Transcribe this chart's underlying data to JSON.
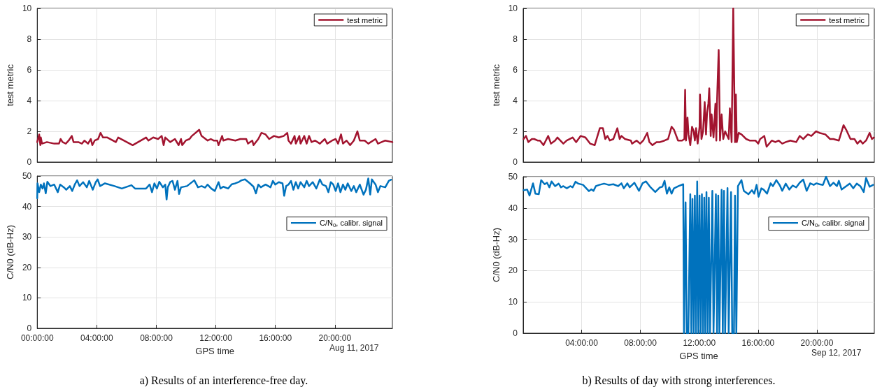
{
  "chart_data": [
    {
      "type": "line",
      "ylabel": "test metric",
      "xlim": [
        0,
        23.86
      ],
      "ylim": [
        0,
        10
      ],
      "yticks": [
        0,
        2,
        4,
        6,
        8,
        10
      ],
      "xticks": [
        {
          "value": 0,
          "label": null
        },
        {
          "value": 4,
          "label": null
        },
        {
          "value": 8,
          "label": null
        },
        {
          "value": 12,
          "label": null
        },
        {
          "value": 16,
          "label": null
        },
        {
          "value": 20,
          "label": null
        }
      ],
      "tick_labels": "y",
      "grid": true,
      "legend": "top right",
      "marker": "none",
      "line_style": "solid",
      "series": [
        {
          "name": "test metric",
          "color": "#a2142f",
          "x": [
            0,
            0.13,
            0.21,
            0.24,
            0.32,
            0.65,
            1.14,
            1.46,
            1.57,
            1.7,
            1.92,
            2.11,
            2.32,
            2.44,
            2.76,
            3.0,
            3.17,
            3.41,
            3.6,
            3.7,
            3.86,
            4.09,
            4.25,
            4.42,
            4.71,
            5.28,
            5.44,
            6.41,
            7.31,
            7.47,
            7.79,
            8.12,
            8.36,
            8.49,
            8.6,
            8.93,
            9.25,
            9.5,
            9.66,
            9.74,
            9.98,
            10.23,
            10.39,
            10.88,
            11.04,
            11.45,
            11.66,
            11.85,
            12.09,
            12.18,
            12.42,
            12.5,
            12.82,
            13.31,
            13.64,
            14.04,
            14.16,
            14.45,
            14.53,
            14.85,
            15.06,
            15.34,
            15.58,
            15.91,
            16.23,
            16.56,
            16.8,
            16.88,
            17.05,
            17.29,
            17.37,
            17.61,
            17.69,
            17.94,
            18.1,
            18.26,
            18.43,
            18.67,
            18.99,
            19.32,
            19.48,
            19.81,
            20.05,
            20.21,
            20.41,
            20.54,
            20.78,
            21.02,
            21.27,
            21.51,
            21.67,
            22.0,
            22.24,
            22.73,
            22.89,
            23.38,
            23.86
          ],
          "values": [
            1.3,
            1.8,
            1.1,
            1.6,
            1.2,
            1.3,
            1.2,
            1.2,
            1.5,
            1.3,
            1.2,
            1.4,
            1.7,
            1.3,
            1.3,
            1.2,
            1.4,
            1.2,
            1.5,
            1.1,
            1.4,
            1.5,
            1.9,
            1.6,
            1.6,
            1.3,
            1.6,
            1.1,
            1.6,
            1.4,
            1.6,
            1.5,
            1.7,
            1.1,
            1.6,
            1.3,
            1.5,
            1.1,
            1.5,
            1.1,
            1.4,
            1.5,
            1.7,
            2.1,
            1.7,
            1.4,
            1.5,
            1.4,
            1.4,
            1.1,
            1.7,
            1.4,
            1.5,
            1.4,
            1.5,
            1.5,
            1.2,
            1.4,
            1.1,
            1.5,
            1.9,
            1.8,
            1.5,
            1.7,
            1.6,
            1.7,
            1.9,
            1.4,
            1.2,
            1.7,
            1.2,
            1.7,
            1.2,
            1.7,
            1.2,
            1.7,
            1.3,
            1.4,
            1.2,
            1.5,
            1.2,
            1.4,
            1.5,
            1.2,
            1.8,
            1.2,
            1.4,
            1.1,
            1.4,
            2.0,
            1.4,
            1.4,
            1.2,
            1.5,
            1.2,
            1.4,
            1.3
          ]
        }
      ]
    },
    {
      "type": "line",
      "ylabel": "C/N0 (dB-Hz)",
      "xlabel": "GPS time",
      "xlim": [
        0,
        23.86
      ],
      "ylim": [
        0,
        50
      ],
      "yticks": [
        0,
        10,
        20,
        30,
        40,
        50
      ],
      "xticks": [
        {
          "value": 0,
          "label": "00:00:00"
        },
        {
          "value": 4,
          "label": "04:00:00"
        },
        {
          "value": 8,
          "label": "08:00:00"
        },
        {
          "value": 12,
          "label": "12:00:00"
        },
        {
          "value": 16,
          "label": "16:00:00"
        },
        {
          "value": 20,
          "label": "20:00:00"
        }
      ],
      "grid": true,
      "legend": "right",
      "marker": "none",
      "line_style": "solid",
      "annotations": [
        "Aug 11, 2017",
        "a) Results of an interference-free day."
      ],
      "series": [
        {
          "name": "C/N$_{0}$, calibr. signal",
          "color": "#0072bd",
          "x": [
            0,
            0.02,
            0.13,
            0.24,
            0.36,
            0.45,
            0.57,
            0.68,
            0.89,
            1.14,
            1.38,
            1.54,
            1.79,
            1.95,
            2.19,
            2.35,
            2.52,
            2.68,
            2.84,
            3.08,
            3.33,
            3.49,
            3.73,
            3.93,
            4.06,
            4.22,
            4.55,
            5.19,
            5.68,
            6.33,
            6.57,
            7.31,
            7.55,
            7.71,
            7.87,
            8.04,
            8.2,
            8.44,
            8.6,
            8.69,
            8.77,
            8.93,
            9.09,
            9.25,
            9.42,
            9.53,
            9.66,
            10.06,
            10.55,
            10.8,
            11.04,
            11.28,
            11.44,
            11.69,
            11.93,
            12.18,
            12.31,
            12.5,
            12.82,
            13.07,
            13.31,
            13.56,
            13.72,
            13.96,
            14.29,
            14.53,
            14.69,
            14.85,
            15.02,
            15.34,
            15.67,
            15.83,
            15.99,
            16.23,
            16.48,
            16.59,
            16.72,
            16.88,
            17.05,
            17.21,
            17.37,
            17.53,
            17.69,
            17.94,
            18.1,
            18.26,
            18.51,
            18.75,
            18.99,
            19.16,
            19.4,
            19.56,
            19.72,
            19.89,
            20.05,
            20.21,
            20.37,
            20.54,
            20.7,
            20.86,
            21.1,
            21.27,
            21.43,
            21.67,
            21.92,
            22.08,
            22.24,
            22.37,
            22.48,
            22.73,
            22.89,
            23.05,
            23.38,
            23.62,
            23.78
          ],
          "values": [
            42.7,
            47.6,
            44.7,
            47.2,
            45.9,
            47.6,
            44.3,
            48.1,
            46.7,
            47.2,
            44.7,
            47.2,
            46.3,
            45.5,
            46.7,
            45.1,
            47.2,
            48.6,
            46.7,
            48.0,
            46.3,
            48.4,
            45.5,
            48.0,
            48.9,
            46.7,
            47.6,
            46.7,
            45.9,
            47.0,
            45.9,
            45.9,
            47.2,
            44.7,
            47.6,
            45.9,
            48.1,
            46.3,
            47.2,
            42.3,
            46.3,
            48.0,
            48.4,
            45.5,
            48.4,
            44.1,
            46.3,
            46.7,
            48.6,
            46.3,
            46.7,
            46.2,
            47.2,
            45.9,
            45.1,
            48.0,
            45.9,
            46.5,
            45.9,
            47.3,
            47.6,
            48.1,
            48.6,
            48.9,
            47.6,
            46.5,
            44.3,
            47.2,
            46.3,
            47.2,
            46.3,
            48.4,
            47.2,
            48.0,
            47.6,
            43.5,
            46.7,
            47.2,
            48.4,
            45.5,
            48.0,
            45.9,
            48.0,
            46.3,
            48.4,
            46.7,
            48.0,
            45.9,
            48.9,
            47.2,
            46.7,
            44.7,
            48.0,
            47.2,
            45.1,
            47.6,
            44.7,
            47.2,
            45.5,
            47.6,
            45.1,
            46.7,
            44.7,
            47.2,
            43.9,
            45.5,
            49.2,
            43.9,
            48.9,
            47.2,
            44.7,
            46.7,
            46.3,
            48.4,
            48.8
          ]
        }
      ]
    },
    {
      "type": "line",
      "ylabel": "test metric",
      "xlim": [
        0.03,
        23.9
      ],
      "ylim": [
        0,
        10
      ],
      "yticks": [
        0,
        2,
        4,
        6,
        8,
        10
      ],
      "xticks": [
        {
          "value": 4,
          "label": null
        },
        {
          "value": 8,
          "label": null
        },
        {
          "value": 12,
          "label": null
        },
        {
          "value": 16,
          "label": null
        },
        {
          "value": 20,
          "label": null
        }
      ],
      "tick_labels": "y",
      "grid": true,
      "legend": "top right",
      "marker": "none",
      "line_style": "solid",
      "series": [
        {
          "name": "test metric",
          "color": "#a2142f",
          "x": [
            0.06,
            0.22,
            0.38,
            0.62,
            0.78,
            1.01,
            1.17,
            1.41,
            1.73,
            1.92,
            2.2,
            2.36,
            2.76,
            2.99,
            3.39,
            3.63,
            3.94,
            4.26,
            4.58,
            4.89,
            5.24,
            5.45,
            5.61,
            5.76,
            5.92,
            6.16,
            6.43,
            6.59,
            6.71,
            6.95,
            7.35,
            7.43,
            7.74,
            7.98,
            8.19,
            8.46,
            8.61,
            8.82,
            9.09,
            9.33,
            9.64,
            9.88,
            10.12,
            10.28,
            10.56,
            10.83,
            10.99,
            11.04,
            11.1,
            11.2,
            11.27,
            11.39,
            11.51,
            11.62,
            11.7,
            11.78,
            11.89,
            12.02,
            12.05,
            12.15,
            12.26,
            12.37,
            12.46,
            12.53,
            12.62,
            12.68,
            12.78,
            12.84,
            12.97,
            13.1,
            13.16,
            13.21,
            13.32,
            13.41,
            13.52,
            13.63,
            13.76,
            14.0,
            14.08,
            14.2,
            14.31,
            14.43,
            14.49,
            14.55,
            14.68,
            14.87,
            15.19,
            15.42,
            15.82,
            16.01,
            16.14,
            16.29,
            16.42,
            16.58,
            16.93,
            17.17,
            17.4,
            17.64,
            17.88,
            18.19,
            18.59,
            18.83,
            19.07,
            19.38,
            19.62,
            19.94,
            20.17,
            20.57,
            20.89,
            21.12,
            21.49,
            21.81,
            21.99,
            22.28,
            22.55,
            22.75,
            22.95,
            23.11,
            23.34,
            23.58,
            23.74,
            23.87
          ],
          "values": [
            1.5,
            1.7,
            1.3,
            1.5,
            1.5,
            1.4,
            1.4,
            1.1,
            1.7,
            1.2,
            1.4,
            1.6,
            1.2,
            1.4,
            1.6,
            1.3,
            1.7,
            1.6,
            1.2,
            1.1,
            2.2,
            2.2,
            1.5,
            1.7,
            1.4,
            1.5,
            2.2,
            1.5,
            1.7,
            1.5,
            1.4,
            1.2,
            1.4,
            1.2,
            1.4,
            1.9,
            1.3,
            1.1,
            1.3,
            1.3,
            1.4,
            1.5,
            2.3,
            2.1,
            1.4,
            1.4,
            1.5,
            4.7,
            1.4,
            2.9,
            1.8,
            1.1,
            2.3,
            2.0,
            1.4,
            2.2,
            1.2,
            2.3,
            4.4,
            1.5,
            2.0,
            3.9,
            1.8,
            3.2,
            3.8,
            4.8,
            1.7,
            3.1,
            1.6,
            3.8,
            1.4,
            4.0,
            7.3,
            1.4,
            3.1,
            1.5,
            2.0,
            1.5,
            3.5,
            1.3,
            10,
            1.3,
            4.4,
            1.3,
            1.9,
            1.8,
            1.5,
            1.4,
            1.4,
            1.2,
            1.5,
            1.6,
            1.7,
            1.0,
            1.4,
            1.3,
            1.4,
            1.2,
            1.3,
            1.4,
            1.3,
            1.7,
            1.5,
            1.8,
            1.7,
            2.0,
            1.9,
            1.8,
            1.5,
            1.5,
            1.4,
            2.4,
            2.1,
            1.5,
            1.5,
            1.2,
            1.4,
            1.2,
            1.4,
            1.9,
            1.5,
            1.6
          ]
        }
      ]
    },
    {
      "type": "line",
      "ylabel": "C/N0 (dB-Hz)",
      "xlabel": "GPS time",
      "xlim": [
        0.03,
        23.9
      ],
      "ylim": [
        0,
        50
      ],
      "yticks": [
        0,
        10,
        20,
        30,
        40,
        50
      ],
      "xticks": [
        {
          "value": 4,
          "label": "04:00:00"
        },
        {
          "value": 8,
          "label": "08:00:00"
        },
        {
          "value": 12,
          "label": "12:00:00"
        },
        {
          "value": 16,
          "label": "16:00:00"
        },
        {
          "value": 20,
          "label": "20:00:00"
        }
      ],
      "grid": true,
      "legend": "right",
      "marker": "none",
      "line_style": "solid",
      "annotations": [
        "Sep 12, 2017",
        "b) Results of day with strong interferences."
      ],
      "series": [
        {
          "name": "C/N$_{0}$, calibr. signal",
          "color": "#0072bd",
          "x": [
            0.06,
            0.3,
            0.46,
            0.7,
            0.86,
            1.09,
            1.25,
            1.49,
            1.65,
            1.81,
            1.96,
            2.2,
            2.44,
            2.6,
            2.76,
            2.99,
            3.23,
            3.39,
            3.59,
            3.78,
            4.1,
            4.5,
            4.66,
            4.81,
            4.97,
            5.21,
            5.53,
            5.84,
            6.16,
            6.48,
            6.71,
            6.87,
            7.11,
            7.27,
            7.59,
            7.9,
            8.14,
            8.38,
            8.69,
            9.01,
            9.33,
            9.49,
            9.64,
            9.8,
            9.96,
            10.12,
            10.28,
            10.59,
            10.91,
            10.96,
            11.07,
            11.15,
            11.26,
            11.39,
            11.46,
            11.54,
            11.62,
            11.7,
            11.78,
            11.86,
            11.94,
            12.02,
            12.1,
            12.18,
            12.26,
            12.34,
            12.41,
            12.49,
            12.57,
            12.65,
            12.73,
            12.89,
            12.97,
            13.13,
            13.21,
            13.29,
            13.37,
            13.52,
            13.6,
            13.68,
            13.76,
            13.92,
            14.0,
            14.16,
            14.24,
            14.36,
            14.43,
            14.52,
            14.63,
            14.87,
            15.03,
            15.34,
            15.58,
            15.74,
            15.9,
            16.03,
            16.22,
            16.37,
            16.61,
            16.85,
            17.01,
            17.24,
            17.48,
            17.64,
            17.88,
            18.12,
            18.35,
            18.59,
            18.83,
            19.07,
            19.3,
            19.54,
            19.78,
            19.97,
            20.17,
            20.41,
            20.62,
            20.89,
            21.12,
            21.36,
            21.49,
            21.68,
            21.99,
            22.23,
            22.47,
            22.71,
            22.95,
            23.18,
            23.34,
            23.58,
            23.82
          ],
          "values": [
            45.7,
            45.9,
            44.0,
            47.9,
            44.6,
            44.4,
            48.9,
            47.6,
            48.1,
            46.6,
            48.5,
            47.0,
            47.8,
            46.6,
            47.0,
            46.3,
            47.0,
            46.6,
            48.4,
            47.8,
            47.4,
            45.4,
            46.0,
            45.5,
            47.0,
            47.4,
            47.8,
            47.4,
            47.6,
            47.0,
            47.9,
            46.3,
            47.9,
            46.6,
            48.1,
            45.5,
            47.9,
            48.5,
            46.6,
            45.1,
            46.6,
            46.8,
            48.7,
            44.6,
            46.6,
            44.6,
            46.3,
            47.0,
            47.6,
            0,
            41.8,
            0,
            0,
            44.4,
            0,
            42.9,
            0,
            44.0,
            0,
            48.5,
            0,
            44.0,
            0,
            44.4,
            0,
            43.3,
            0,
            45.1,
            0,
            43.3,
            0,
            45.5,
            0,
            44.4,
            0,
            44.0,
            0,
            45.8,
            0,
            45.5,
            0,
            46.4,
            0,
            45.1,
            0,
            0,
            44.0,
            0,
            47.0,
            48.9,
            45.5,
            44.4,
            45.7,
            44.6,
            47.4,
            43.6,
            46.3,
            45.9,
            44.6,
            47.9,
            47.0,
            48.9,
            47.2,
            45.5,
            47.8,
            45.9,
            47.2,
            46.6,
            48.1,
            49.1,
            45.5,
            47.9,
            47.4,
            47.9,
            47.6,
            47.4,
            50,
            47.0,
            48.1,
            47.0,
            48.7,
            45.9,
            47.0,
            47.8,
            46.3,
            47.8,
            47.0,
            45.1,
            49.6,
            46.8,
            47.4
          ]
        }
      ]
    }
  ]
}
